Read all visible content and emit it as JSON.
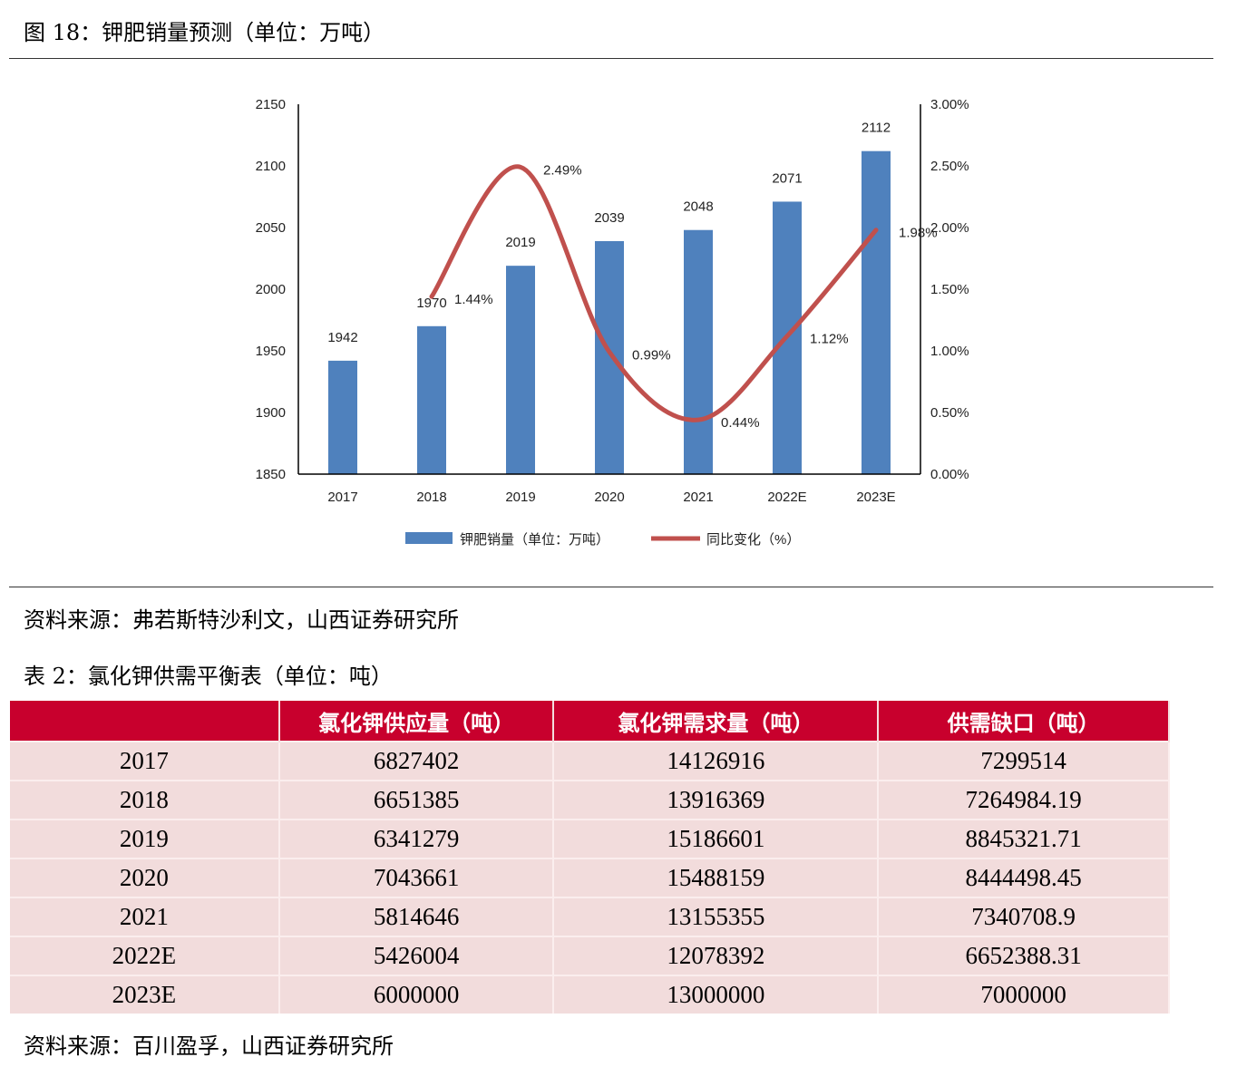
{
  "figure_caption": "图 18：钾肥销量预测（单位：万吨）",
  "figure_source": "资料来源：弗若斯特沙利文，山西证券研究所",
  "table_caption": "表 2：氯化钾供需平衡表（单位：吨）",
  "table_source": "资料来源：百川盈孚，山西证券研究所",
  "colors": {
    "bar": "#4f81bd",
    "line": "#c0504d",
    "header": "#c8002d",
    "row": "#f2dcdc"
  },
  "chart_data": {
    "type": "bar+line",
    "categories": [
      "2017",
      "2018",
      "2019",
      "2020",
      "2021",
      "2022E",
      "2023E"
    ],
    "series": [
      {
        "name": "钾肥销量（单位：万吨）",
        "type": "bar",
        "axis": "left",
        "values": [
          1942,
          1970,
          2019,
          2039,
          2048,
          2071,
          2112
        ],
        "labels": [
          "1942",
          "1970",
          "2019",
          "2039",
          "2048",
          "2071",
          "2112"
        ]
      },
      {
        "name": "同比变化（%）",
        "type": "line",
        "axis": "right",
        "values": [
          null,
          1.44,
          2.49,
          0.99,
          0.44,
          1.12,
          1.98
        ],
        "labels": [
          "",
          "1.44%",
          "2.49%",
          "0.99%",
          "0.44%",
          "1.12%",
          "1.98%"
        ]
      }
    ],
    "left_axis": {
      "range": [
        1850,
        2150
      ],
      "ticks": [
        "1850",
        "1900",
        "1950",
        "2000",
        "2050",
        "2100",
        "2150"
      ]
    },
    "right_axis": {
      "range": [
        0,
        3
      ],
      "ticks": [
        "0.00%",
        "0.50%",
        "1.00%",
        "1.50%",
        "2.00%",
        "2.50%",
        "3.00%"
      ]
    },
    "legend_position": "bottom",
    "grid": false
  },
  "table": {
    "headers": [
      "",
      "氯化钾供应量（吨）",
      "氯化钾需求量（吨）",
      "供需缺口（吨）"
    ],
    "rows": [
      [
        "2017",
        "6827402",
        "14126916",
        "7299514"
      ],
      [
        "2018",
        "6651385",
        "13916369",
        "7264984.19"
      ],
      [
        "2019",
        "6341279",
        "15186601",
        "8845321.71"
      ],
      [
        "2020",
        "7043661",
        "15488159",
        "8444498.45"
      ],
      [
        "2021",
        "5814646",
        "13155355",
        "7340708.9"
      ],
      [
        "2022E",
        "5426004",
        "12078392",
        "6652388.31"
      ],
      [
        "2023E",
        "6000000",
        "13000000",
        "7000000"
      ]
    ]
  }
}
